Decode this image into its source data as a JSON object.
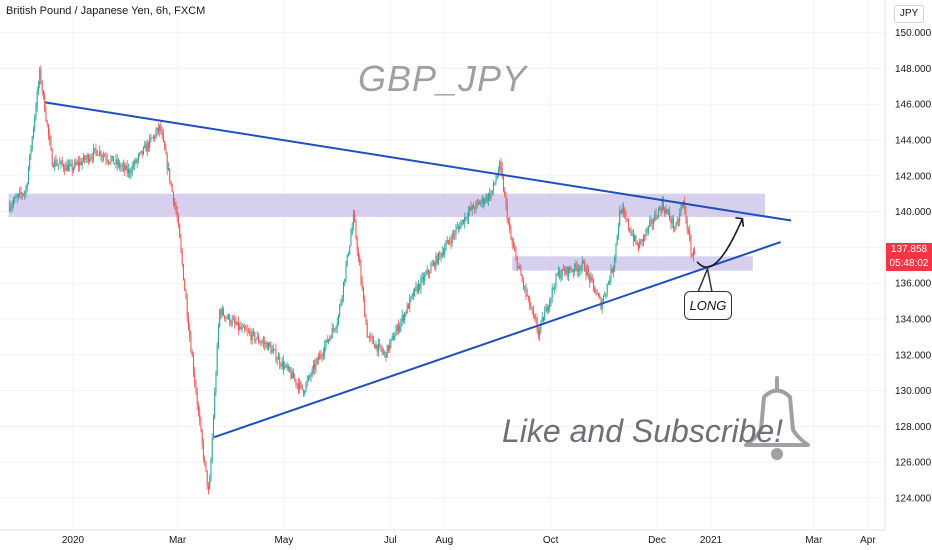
{
  "header": {
    "symbol": "British Pound / Japanese Yen, 6h, FXCM",
    "currency_button": "JPY"
  },
  "annotations": {
    "title": "GBP_JPY",
    "subscribe": "Like and Subscribe!",
    "long_label": "LONG"
  },
  "price_tags": {
    "last_price": "137.858",
    "countdown": "05:48:02",
    "color": "#f23645"
  },
  "colors": {
    "trendline": "#1e4fbf",
    "zone": "#c9bfe8",
    "candle_up": "#26a69a",
    "candle_down": "#ef5350",
    "bell": "#9ea0a4"
  },
  "chart_data": {
    "type": "candlestick",
    "yaxis": {
      "min": 123,
      "max": 151.5,
      "ticks": [
        "150.000",
        "148.000",
        "146.000",
        "144.000",
        "142.000",
        "140.000",
        "138.000",
        "136.000",
        "134.000",
        "132.000",
        "130.000",
        "128.000",
        "126.000",
        "124.000"
      ]
    },
    "xaxis": {
      "ticks": [
        "2020",
        "Mar",
        "May",
        "Jul",
        "Aug",
        "Oct",
        "Dec",
        "2021",
        "Mar",
        "Apr"
      ]
    },
    "price_path": [
      {
        "t": "2019-11-25",
        "p": 140.3
      },
      {
        "t": "2019-12-05",
        "p": 141.2
      },
      {
        "t": "2019-12-13",
        "p": 147.8
      },
      {
        "t": "2019-12-20",
        "p": 142.8
      },
      {
        "t": "2019-12-31",
        "p": 142.4
      },
      {
        "t": "2020-01-15",
        "p": 143.4
      },
      {
        "t": "2020-02-02",
        "p": 142.2
      },
      {
        "t": "2020-02-20",
        "p": 144.7
      },
      {
        "t": "2020-03-01",
        "p": 139.5
      },
      {
        "t": "2020-03-08",
        "p": 133.0
      },
      {
        "t": "2020-03-15",
        "p": 127.0
      },
      {
        "t": "2020-03-19",
        "p": 124.1
      },
      {
        "t": "2020-03-25",
        "p": 134.5
      },
      {
        "t": "2020-04-05",
        "p": 133.5
      },
      {
        "t": "2020-04-22",
        "p": 132.5
      },
      {
        "t": "2020-05-12",
        "p": 130.0
      },
      {
        "t": "2020-06-01",
        "p": 134.0
      },
      {
        "t": "2020-06-10",
        "p": 139.7
      },
      {
        "t": "2020-06-18",
        "p": 133.0
      },
      {
        "t": "2020-06-28",
        "p": 132.0
      },
      {
        "t": "2020-07-15",
        "p": 135.5
      },
      {
        "t": "2020-07-29",
        "p": 137.5
      },
      {
        "t": "2020-08-15",
        "p": 140.0
      },
      {
        "t": "2020-08-28",
        "p": 141.0
      },
      {
        "t": "2020-09-02",
        "p": 142.6
      },
      {
        "t": "2020-09-08",
        "p": 138.5
      },
      {
        "t": "2020-09-15",
        "p": 136.0
      },
      {
        "t": "2020-09-24",
        "p": 133.2
      },
      {
        "t": "2020-10-05",
        "p": 136.5
      },
      {
        "t": "2020-10-20",
        "p": 137.0
      },
      {
        "t": "2020-10-30",
        "p": 134.8
      },
      {
        "t": "2020-11-06",
        "p": 137.0
      },
      {
        "t": "2020-11-10",
        "p": 140.2
      },
      {
        "t": "2020-11-20",
        "p": 138.0
      },
      {
        "t": "2020-12-04",
        "p": 140.4
      },
      {
        "t": "2020-12-12",
        "p": 139.0
      },
      {
        "t": "2020-12-16",
        "p": 140.6
      },
      {
        "t": "2020-12-21",
        "p": 137.5
      },
      {
        "t": "2020-12-23",
        "p": 137.858
      }
    ],
    "trendlines": [
      {
        "name": "upper-resistance-line",
        "from": {
          "t": "2019-12-16",
          "p": 146.1
        },
        "to": {
          "t": "2021-02-16",
          "p": 139.5
        }
      },
      {
        "name": "lower-support-line",
        "from": {
          "t": "2020-03-22",
          "p": 127.4
        },
        "to": {
          "t": "2021-02-10",
          "p": 138.3
        }
      }
    ],
    "zones": [
      {
        "name": "upper-supply-zone",
        "from": "2019-11-25",
        "to": "2021-02-01",
        "low": 139.7,
        "high": 141.0
      },
      {
        "name": "lower-demand-zone",
        "from": "2020-09-09",
        "to": "2021-01-25",
        "low": 136.7,
        "high": 137.5
      }
    ],
    "projection": {
      "name": "projected-path-arrow",
      "points": [
        {
          "t": "2020-12-24",
          "p": 137.2
        },
        {
          "t": "2021-01-01",
          "p": 136.6
        },
        {
          "t": "2021-01-10",
          "p": 137.6
        },
        {
          "t": "2021-01-19",
          "p": 139.6
        }
      ]
    },
    "callout_point": {
      "t": "2020-12-30",
      "p": 136.8
    }
  }
}
